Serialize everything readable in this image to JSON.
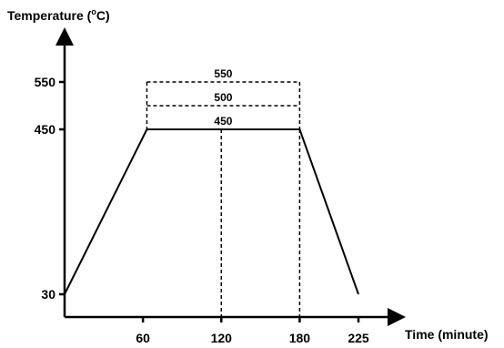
{
  "chart_data": {
    "type": "line",
    "ylabel": "Temperature (°C)",
    "ylabel_parts": {
      "before": "Temperature (",
      "sup": "o",
      "after": "C)"
    },
    "xlabel": "Time (minute)",
    "x_ticks": [
      "60",
      "120",
      "180",
      "225"
    ],
    "y_ticks": [
      "30",
      "450",
      "550"
    ],
    "series": [
      {
        "x": [
          0,
          63,
          180,
          225
        ],
        "y": [
          30,
          450,
          450,
          30
        ]
      }
    ],
    "hold_levels": [
      {
        "label": "550",
        "value": 550
      },
      {
        "label": "500",
        "value": 500
      },
      {
        "label": "450",
        "value": 450
      }
    ],
    "hold_start": 63,
    "hold_end": 180,
    "reference_line_x": 120
  }
}
